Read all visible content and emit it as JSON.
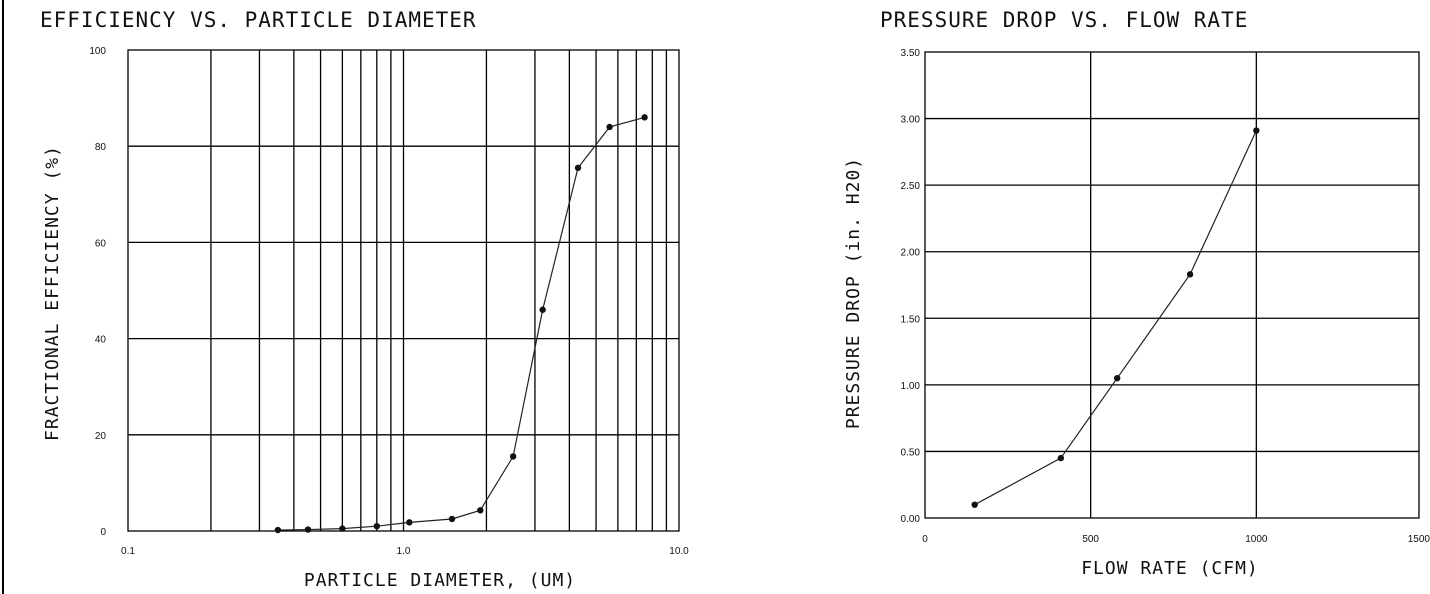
{
  "chart_data": [
    {
      "type": "line",
      "title": "EFFICIENCY VS. PARTICLE DIAMETER",
      "xlabel": "PARTICLE DIAMETER, (UM)",
      "ylabel": "FRACTIONAL EFFICIENCY (%)",
      "xscale": "log",
      "xlim": [
        0.1,
        10
      ],
      "ylim": [
        0,
        100
      ],
      "xticks": [
        0.1,
        1.0,
        10.0
      ],
      "xtick_labels": [
        "0.1",
        "1.0",
        "10.0"
      ],
      "yticks": [
        0,
        20,
        40,
        60,
        80,
        100
      ],
      "ytick_labels": [
        "0",
        "20",
        "40",
        "60",
        "80",
        "100"
      ],
      "grid": true,
      "series": [
        {
          "x": [
            0.35,
            0.45,
            0.6,
            0.8,
            1.05,
            1.5,
            1.9,
            2.5,
            3.2,
            4.3,
            5.6,
            7.5
          ],
          "y": [
            0.2,
            0.3,
            0.5,
            1.0,
            1.8,
            2.5,
            4.3,
            15.5,
            46,
            75.5,
            84,
            86
          ]
        }
      ]
    },
    {
      "type": "line",
      "title": "PRESSURE DROP VS. FLOW RATE",
      "xlabel": "FLOW RATE (CFM)",
      "ylabel": "PRESSURE DROP (in. H20)",
      "xlim": [
        0,
        1500
      ],
      "ylim": [
        0,
        3.5
      ],
      "xticks": [
        0,
        500,
        1000,
        1500
      ],
      "xtick_labels": [
        "0",
        "500",
        "1000",
        "1500"
      ],
      "yticks": [
        0,
        0.5,
        1.0,
        1.5,
        2.0,
        2.5,
        3.0,
        3.5
      ],
      "ytick_labels": [
        "0.00",
        "0.50",
        "1.00",
        "1.50",
        "2.00",
        "2.50",
        "3.00",
        "3.50"
      ],
      "grid": true,
      "series": [
        {
          "x": [
            150,
            410,
            580,
            800,
            1000
          ],
          "y": [
            0.1,
            0.45,
            1.05,
            1.83,
            2.91
          ]
        }
      ]
    }
  ]
}
